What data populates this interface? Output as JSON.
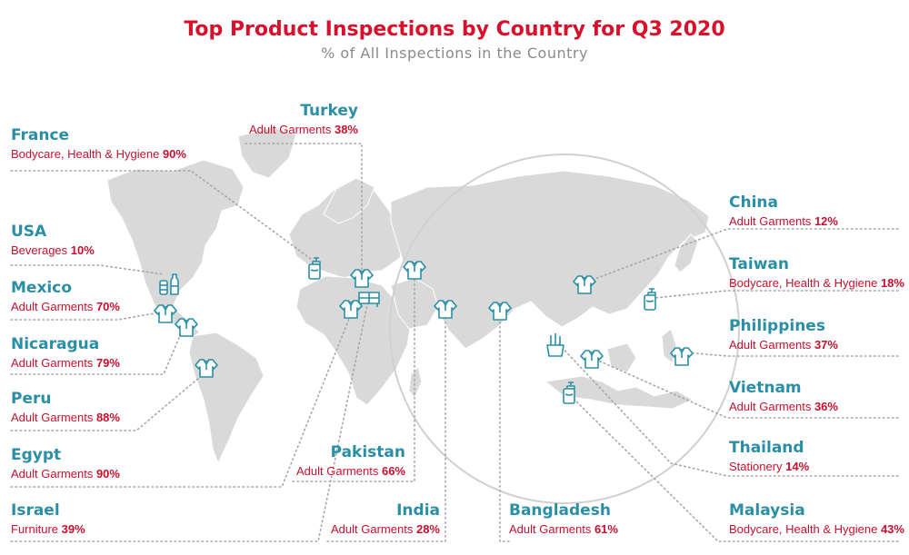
{
  "header": {
    "title": "Top Product Inspections by Country for Q3 2020",
    "subtitle": "% of All Inspections in the Country"
  },
  "colors": {
    "title": "#d9102c",
    "country": "#2a8fa6",
    "product": "#c8102e",
    "land": "#d9d9d9",
    "icon": "#2a8fa6"
  },
  "countries": [
    {
      "key": "france",
      "country": "France",
      "product": "Bodycare, Health & Hygiene",
      "percent": "90%",
      "icon": "sanitizer-icon"
    },
    {
      "key": "turkey",
      "country": "Turkey",
      "product": "Adult Garments",
      "percent": "38%",
      "icon": "tshirt-icon"
    },
    {
      "key": "usa",
      "country": "USA",
      "product": "Beverages",
      "percent": "10%",
      "icon": "beverages-icon"
    },
    {
      "key": "mexico",
      "country": "Mexico",
      "product": "Adult Garments",
      "percent": "70%",
      "icon": "tshirt-icon"
    },
    {
      "key": "nicaragua",
      "country": "Nicaragua",
      "product": "Adult Garments",
      "percent": "79%",
      "icon": "tshirt-icon"
    },
    {
      "key": "peru",
      "country": "Peru",
      "product": "Adult Garments",
      "percent": "88%",
      "icon": "tshirt-icon"
    },
    {
      "key": "egypt",
      "country": "Egypt",
      "product": "Adult Garments",
      "percent": "90%",
      "icon": "tshirt-icon"
    },
    {
      "key": "israel",
      "country": "Israel",
      "product": "Furniture",
      "percent": "39%",
      "icon": "furniture-icon"
    },
    {
      "key": "pakistan",
      "country": "Pakistan",
      "product": "Adult Garments",
      "percent": "66%",
      "icon": "tshirt-icon"
    },
    {
      "key": "india",
      "country": "India",
      "product": "Adult Garments",
      "percent": "28%",
      "icon": "tshirt-icon"
    },
    {
      "key": "bangladesh",
      "country": "Bangladesh",
      "product": "Adult Garments",
      "percent": "61%",
      "icon": "tshirt-icon"
    },
    {
      "key": "china",
      "country": "China",
      "product": "Adult Garments",
      "percent": "12%",
      "icon": "tshirt-icon"
    },
    {
      "key": "taiwan",
      "country": "Taiwan",
      "product": "Bodycare, Health & Hygiene",
      "percent": "18%",
      "icon": "sanitizer-icon"
    },
    {
      "key": "philippines",
      "country": "Philippines",
      "product": "Adult Garments",
      "percent": "37%",
      "icon": "tshirt-icon"
    },
    {
      "key": "vietnam",
      "country": "Vietnam",
      "product": "Adult Garments",
      "percent": "36%",
      "icon": "tshirt-icon"
    },
    {
      "key": "thailand",
      "country": "Thailand",
      "product": "Stationery",
      "percent": "14%",
      "icon": "stationery-icon"
    },
    {
      "key": "malaysia",
      "country": "Malaysia",
      "product": "Bodycare, Health & Hygiene",
      "percent": "43%",
      "icon": "sanitizer-icon"
    }
  ]
}
